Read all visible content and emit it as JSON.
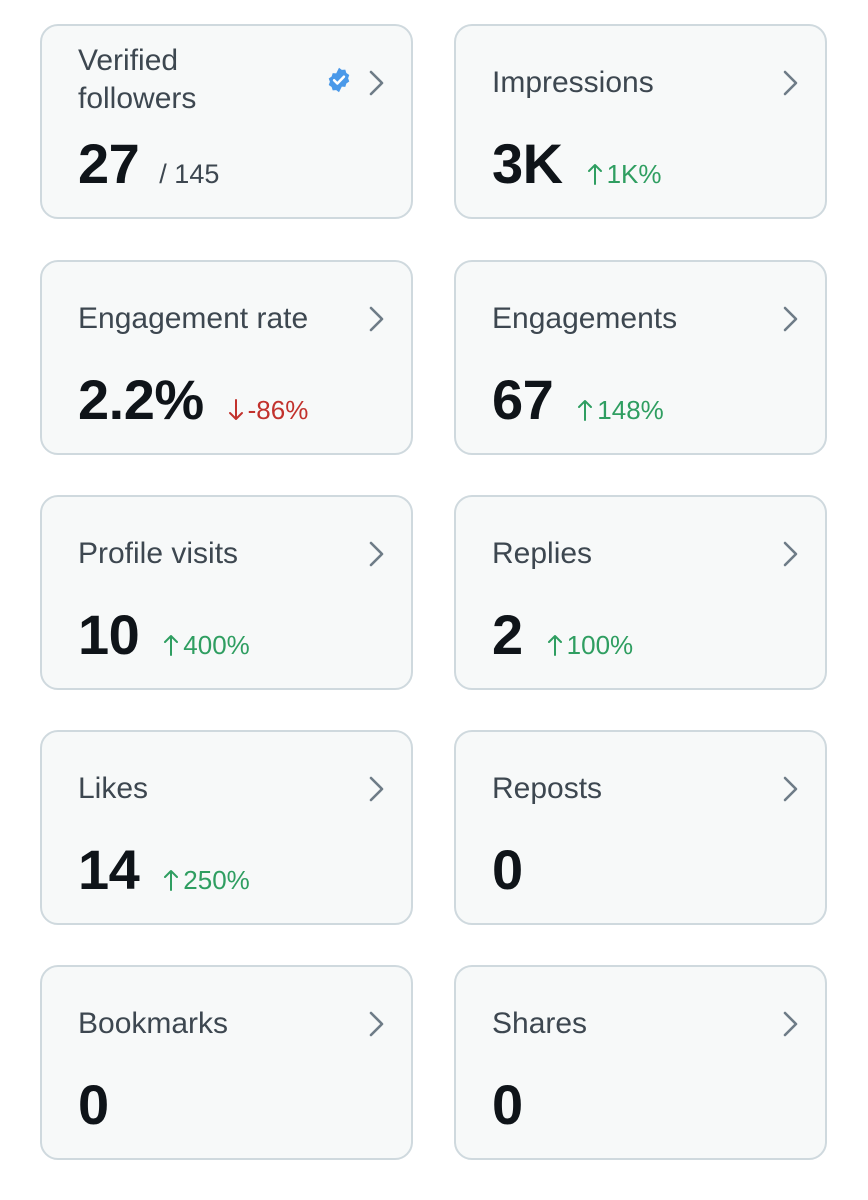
{
  "cards": [
    {
      "id": "verified-followers",
      "title": "Verified followers",
      "value": "27",
      "sub": "/ 145",
      "verified": true,
      "badge_color": "#4a99e9"
    },
    {
      "id": "impressions",
      "title": "Impressions",
      "value": "3K",
      "delta": "1K%",
      "direction": "up"
    },
    {
      "id": "engagement-rate",
      "title": "Engagement rate",
      "value": "2.2%",
      "delta": "-86%",
      "direction": "down"
    },
    {
      "id": "engagements",
      "title": "Engagements",
      "value": "67",
      "delta": "148%",
      "direction": "up"
    },
    {
      "id": "profile-visits",
      "title": "Profile visits",
      "value": "10",
      "delta": "400%",
      "direction": "up"
    },
    {
      "id": "replies",
      "title": "Replies",
      "value": "2",
      "delta": "100%",
      "direction": "up"
    },
    {
      "id": "likes",
      "title": "Likes",
      "value": "14",
      "delta": "250%",
      "direction": "up"
    },
    {
      "id": "reposts",
      "title": "Reposts",
      "value": "0"
    },
    {
      "id": "bookmarks",
      "title": "Bookmarks",
      "value": "0"
    },
    {
      "id": "shares",
      "title": "Shares",
      "value": "0"
    }
  ],
  "colors": {
    "up": "#2f9e61",
    "down": "#c2322d",
    "chevron": "#6e7c87"
  }
}
